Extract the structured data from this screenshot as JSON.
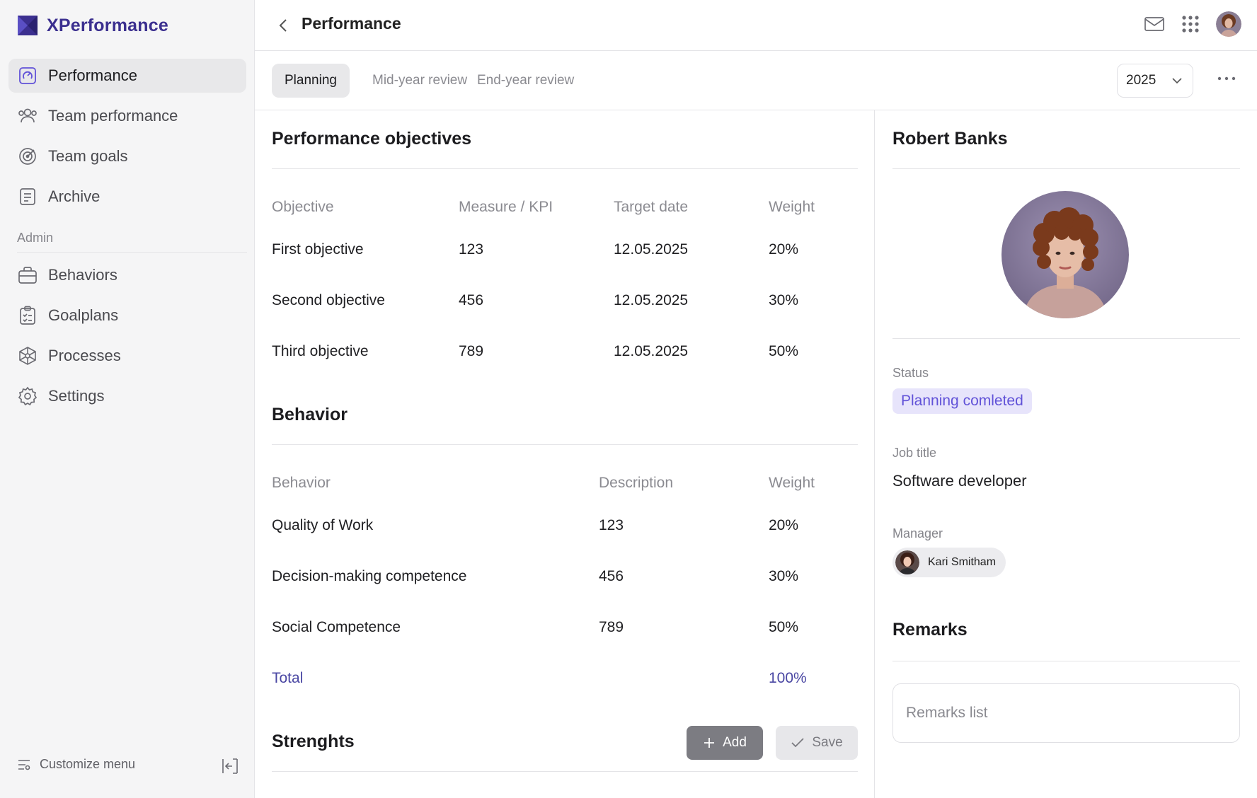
{
  "app": {
    "name": "XPerformance"
  },
  "colors": {
    "brand": "#3b2f8f",
    "status_bg": "#e7e4fb",
    "status_text": "#6152d8",
    "total": "#4a47a3"
  },
  "sidebar": {
    "items": [
      {
        "label": "Performance",
        "icon": "performance-icon",
        "active": true
      },
      {
        "label": "Team performance",
        "icon": "team-icon"
      },
      {
        "label": "Team goals",
        "icon": "target-icon"
      },
      {
        "label": "Archive",
        "icon": "archive-icon"
      }
    ],
    "admin_label": "Admin",
    "admin_items": [
      {
        "label": "Behaviors",
        "icon": "briefcase-icon"
      },
      {
        "label": "Goalplans",
        "icon": "clipboard-icon"
      },
      {
        "label": "Processes",
        "icon": "network-icon"
      },
      {
        "label": "Settings",
        "icon": "gear-icon"
      }
    ],
    "customize_label": "Customize menu"
  },
  "header": {
    "title": "Performance"
  },
  "tabs": [
    {
      "label": "Planning",
      "active": true
    },
    {
      "label": "Mid-year review"
    },
    {
      "label": "End-year review"
    }
  ],
  "year": "2025",
  "objectives": {
    "title": "Performance objectives",
    "columns": [
      "Objective",
      "Measure / KPI",
      "Target date",
      "Weight"
    ],
    "rows": [
      [
        "First objective",
        "123",
        "12.05.2025",
        "20%"
      ],
      [
        "Second objective",
        "456",
        "12.05.2025",
        "30%"
      ],
      [
        "Third objective",
        "789",
        "12.05.2025",
        "50%"
      ]
    ]
  },
  "behavior": {
    "title": "Behavior",
    "columns": [
      "Behavior",
      "Description",
      "Weight"
    ],
    "rows": [
      [
        "Quality of Work",
        "123",
        "20%"
      ],
      [
        "Decision-making competence",
        "456",
        "30%"
      ],
      [
        "Social Competence",
        "789",
        "50%"
      ]
    ],
    "total_label": "Total",
    "total_value": "100%"
  },
  "strengths": {
    "title": "Strenghts",
    "add_label": "Add",
    "save_label": "Save"
  },
  "profile": {
    "name": "Robert Banks",
    "status_label": "Status",
    "status_value": "Planning comleted",
    "job_label": "Job title",
    "job_value": "Software developer",
    "manager_label": "Manager",
    "manager_name": "Kari Smitham"
  },
  "remarks": {
    "title": "Remarks",
    "placeholder": "Remarks list"
  }
}
